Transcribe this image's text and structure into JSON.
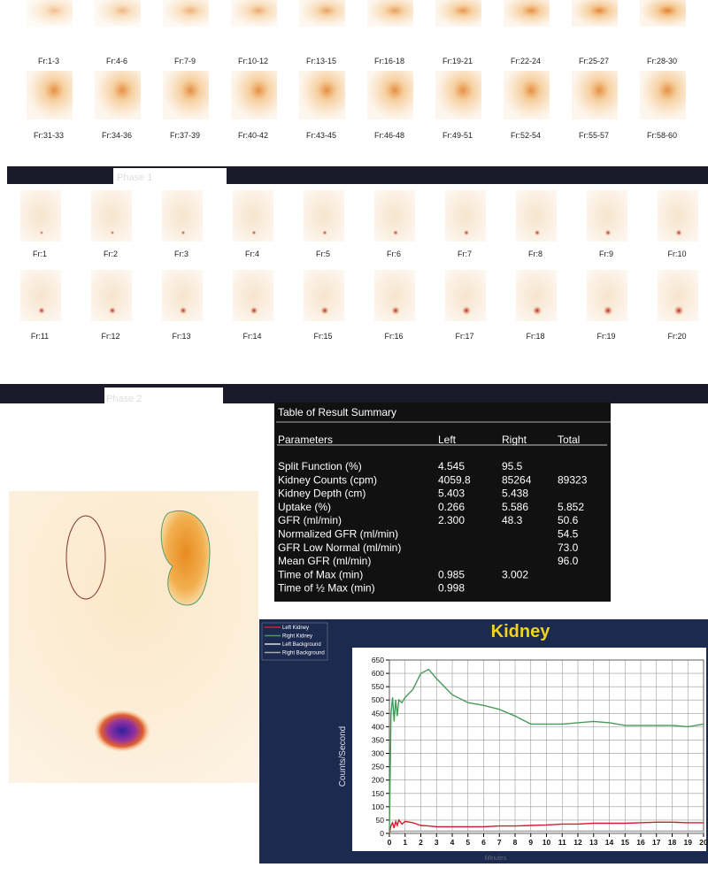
{
  "frames_top": [
    "Fr:1-3",
    "Fr:4-6",
    "Fr:7-9",
    "Fr:10-12",
    "Fr:13-15",
    "Fr:16-18",
    "Fr:19-21",
    "Fr:22-24",
    "Fr:25-27",
    "Fr:28-30",
    "Fr:31-33",
    "Fr:34-36",
    "Fr:37-39",
    "Fr:40-42",
    "Fr:43-45",
    "Fr:46-48",
    "Fr:49-51",
    "Fr:52-54",
    "Fr:55-57",
    "Fr:58-60"
  ],
  "phase1": {
    "label": "Phase 1",
    "frames": [
      "Fr:1",
      "Fr:2",
      "Fr:3",
      "Fr:4",
      "Fr:5",
      "Fr:6",
      "Fr:7",
      "Fr:8",
      "Fr:9",
      "Fr:10",
      "Fr:11",
      "Fr:12",
      "Fr:13",
      "Fr:14",
      "Fr:15",
      "Fr:16",
      "Fr:17",
      "Fr:18",
      "Fr:19",
      "Fr:20"
    ]
  },
  "phase2": {
    "label": "Phase 2"
  },
  "table": {
    "title": "Table of Result Summary",
    "header": [
      "Parameters",
      "Left",
      "Right",
      "Total"
    ],
    "rows": [
      [
        "Split Function (%)",
        "4.545",
        "95.5",
        null
      ],
      [
        "Kidney Counts (cpm)",
        "4059.8",
        "85264",
        "89323"
      ],
      [
        "Kidney Depth (cm)",
        "5.403",
        "5.438",
        null
      ],
      [
        "Uptake (%)",
        "0.266",
        "5.586",
        "5.852"
      ],
      [
        "GFR (ml/min)",
        "2.300",
        "48.3",
        "50.6"
      ],
      [
        "Normalized GFR (ml/min)",
        null,
        null,
        "54.5"
      ],
      [
        "GFR Low Normal (ml/min)",
        null,
        null,
        "73.0"
      ],
      [
        "Mean GFR (ml/min)",
        null,
        null,
        "96.0"
      ],
      [
        "Time of Max (min)",
        "0.985",
        "3.002",
        null
      ],
      [
        "Time of ½ Max (min)",
        "0.998",
        null,
        null
      ]
    ]
  },
  "chart_data": {
    "type": "line",
    "title": "Kidney",
    "y_label": "Counts/Second",
    "x_label": "Minutes",
    "x": [
      0,
      0.1,
      0.2,
      0.3,
      0.4,
      0.5,
      0.6,
      0.8,
      1,
      1.5,
      2,
      2.5,
      3,
      4,
      5,
      6,
      7,
      8,
      9,
      10,
      11,
      12,
      13,
      14,
      15,
      16,
      17,
      18,
      19,
      20
    ],
    "series": [
      {
        "name": "Left Kidney",
        "color": "#d02030",
        "values": [
          0,
          30,
          40,
          20,
          45,
          30,
          50,
          35,
          45,
          40,
          30,
          28,
          25,
          25,
          25,
          25,
          28,
          28,
          30,
          32,
          35,
          35,
          38,
          38,
          38,
          40,
          42,
          42,
          40,
          40
        ]
      },
      {
        "name": "Right Kidney",
        "color": "#4a9a5a",
        "values": [
          0,
          450,
          510,
          420,
          500,
          440,
          500,
          490,
          510,
          540,
          600,
          615,
          580,
          520,
          490,
          480,
          465,
          440,
          410,
          410,
          410,
          415,
          420,
          415,
          405,
          405,
          405,
          405,
          400,
          410
        ]
      },
      {
        "name": "Left Background",
        "color": "#dddddd",
        "values": [
          0,
          5,
          6,
          5,
          6,
          5,
          6,
          6,
          6,
          6,
          6,
          6,
          6,
          6,
          6,
          6,
          6,
          6,
          6,
          6,
          6,
          6,
          6,
          6,
          6,
          6,
          6,
          6,
          6,
          6
        ]
      },
      {
        "name": "Right Background",
        "color": "#aaaaaa",
        "values": [
          0,
          8,
          9,
          8,
          9,
          8,
          9,
          9,
          9,
          9,
          9,
          9,
          9,
          9,
          9,
          9,
          9,
          9,
          9,
          9,
          9,
          9,
          9,
          9,
          9,
          9,
          9,
          9,
          9,
          9
        ]
      }
    ],
    "xlim": [
      0,
      20
    ],
    "ylim": [
      0,
      650
    ],
    "xticks": [
      0,
      1,
      2,
      3,
      4,
      5,
      6,
      7,
      8,
      9,
      10,
      11,
      12,
      13,
      14,
      15,
      16,
      17,
      18,
      19,
      20
    ],
    "yticks": [
      0,
      50,
      100,
      150,
      200,
      250,
      300,
      350,
      400,
      450,
      500,
      550,
      600,
      650
    ],
    "grid": true
  }
}
